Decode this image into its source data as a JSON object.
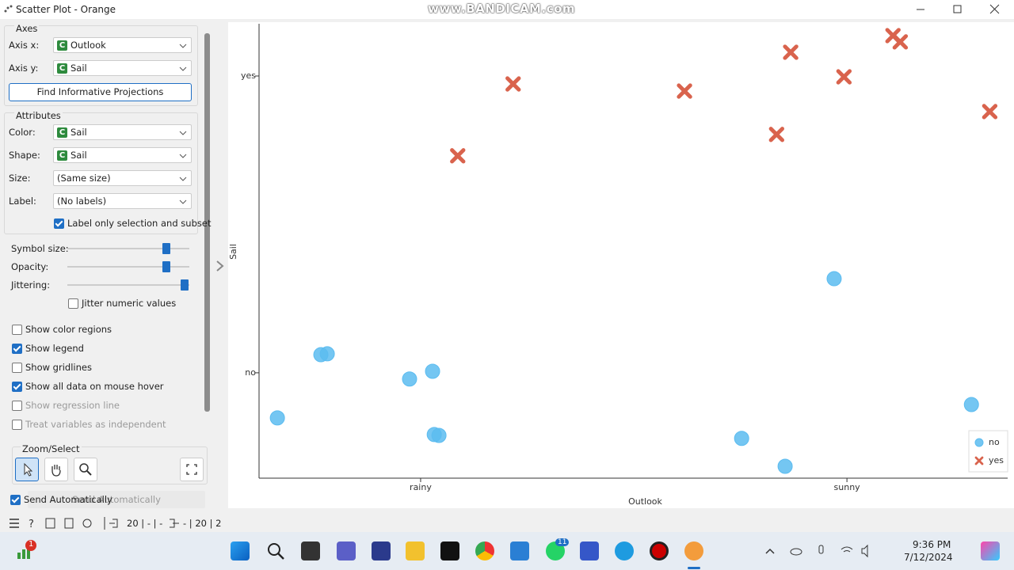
{
  "window": {
    "title": "Scatter Plot - Orange",
    "watermark": "www.BANDICAM.com"
  },
  "axes": {
    "title": "Axes",
    "rows": [
      {
        "label": "Axis x:",
        "icon": "C",
        "value": "Outlook"
      },
      {
        "label": "Axis y:",
        "icon": "C",
        "value": "Sail"
      }
    ],
    "button": "Find Informative Projections"
  },
  "attributes": {
    "title": "Attributes",
    "rows": [
      {
        "label": "Color:",
        "icon": "C",
        "value": "Sail"
      },
      {
        "label": "Shape:",
        "icon": "C",
        "value": "Sail"
      },
      {
        "label": "Size:",
        "value": "(Same size)"
      },
      {
        "label": "Label:",
        "value": "(No labels)"
      }
    ],
    "label_only": {
      "label": "Label only selection and subset",
      "checked": true
    }
  },
  "sliders": [
    {
      "label": "Symbol size:"
    },
    {
      "label": "Opacity:"
    },
    {
      "label": "Jittering:"
    }
  ],
  "jitter_numeric": {
    "label": "Jitter numeric values",
    "checked": false
  },
  "options": [
    {
      "label": "Show color regions",
      "checked": false,
      "enabled": true
    },
    {
      "label": "Show legend",
      "checked": true,
      "enabled": true
    },
    {
      "label": "Show gridlines",
      "checked": false,
      "enabled": true
    },
    {
      "label": "Show all data on mouse hover",
      "checked": true,
      "enabled": true
    },
    {
      "label": "Show regression line",
      "checked": false,
      "enabled": false
    },
    {
      "label": "Treat variables as independent",
      "checked": false,
      "enabled": false
    }
  ],
  "zoom_select": {
    "title": "Zoom/Select"
  },
  "send": {
    "label": "Send Automatically",
    "checked": true
  },
  "status": {
    "input": "20 | - | -",
    "output": "- | 20 | 2"
  },
  "taskbar": {
    "time": "9:36 PM",
    "date": "7/12/2024",
    "badge_widgets": "1",
    "badge_whatsapp": "11"
  },
  "chart_data": {
    "type": "scatter",
    "x_label": "Outlook",
    "y_label": "Sail",
    "xlim": [
      -0.379,
      1.377
    ],
    "ylim": [
      -0.355,
      1.176
    ],
    "xticks": [
      {
        "value": 0,
        "label": "rainy"
      },
      {
        "value": 1,
        "label": "sunny"
      }
    ],
    "yticks": [
      {
        "value": 0,
        "label": "no"
      },
      {
        "value": 1,
        "label": "yes"
      }
    ],
    "grid": false,
    "legend": "bottom-right",
    "series": [
      {
        "name": "no",
        "color": "#5cbcf0",
        "marker": "circle",
        "x": [
          -0.336,
          -0.234,
          -0.219,
          -0.026,
          0.028,
          0.032,
          0.043,
          0.753,
          0.855,
          0.97,
          1.292
        ],
        "values": [
          -0.152,
          0.061,
          0.064,
          -0.021,
          0.005,
          -0.208,
          -0.211,
          -0.221,
          -0.315,
          0.317,
          -0.107
        ]
      },
      {
        "name": "yes",
        "color": "#d9634d",
        "marker": "x",
        "x": [
          0.087,
          0.217,
          0.619,
          0.835,
          0.868,
          0.993,
          1.108,
          1.125,
          1.335
        ],
        "values": [
          0.731,
          0.973,
          0.949,
          0.803,
          1.08,
          0.997,
          1.136,
          1.115,
          0.88
        ]
      }
    ]
  }
}
